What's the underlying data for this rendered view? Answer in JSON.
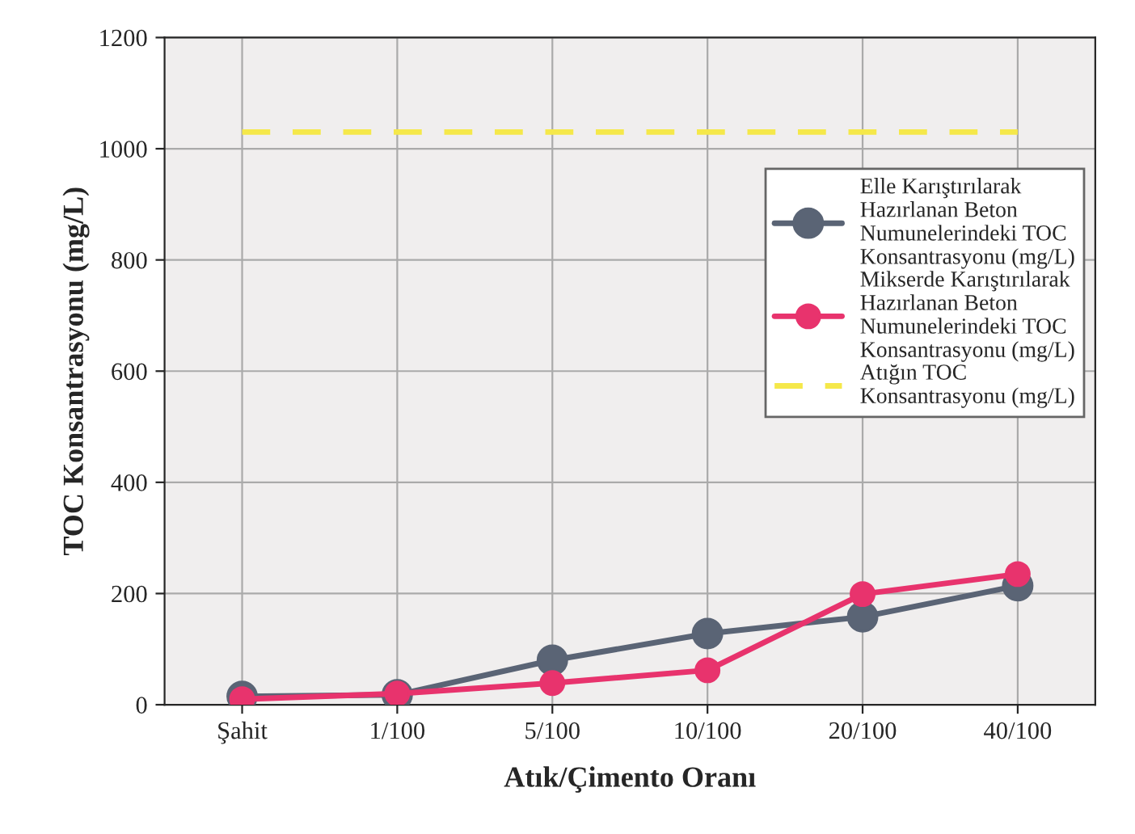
{
  "chart_data": {
    "type": "line",
    "xlabel": "Atık/Çimento Oranı",
    "ylabel": "TOC Konsantrasyonu (mg/L)",
    "categories": [
      "Şahit",
      "1/100",
      "5/100",
      "10/100",
      "20/100",
      "40/100"
    ],
    "series": [
      {
        "name": "Elle Karıştırılarak Hazırlanan Beton Numunelerindeki TOC Konsantrasyonu (mg/L)",
        "color": "#5a6475",
        "values": [
          15,
          18,
          80,
          128,
          158,
          214
        ],
        "marker": "circle",
        "line_style": "solid"
      },
      {
        "name": "Mikserde Karıştırılarak Hazırlanan Beton Numunelerindeki TOC Konsantrasyonu (mg/L)",
        "color": "#e8336d",
        "values": [
          10,
          20,
          39,
          62,
          199,
          235
        ],
        "marker": "circle",
        "line_style": "solid"
      },
      {
        "name": "Atığın TOC Konsantrasyonu (mg/L)",
        "color": "#f5e84a",
        "values": [
          1030,
          1030,
          1030,
          1030,
          1030,
          1030
        ],
        "marker": "none",
        "line_style": "dashed"
      }
    ],
    "ylim": [
      0,
      1200
    ],
    "yticks": [
      0,
      200,
      400,
      600,
      800,
      1000,
      1200
    ],
    "grid": true,
    "legend": "right"
  }
}
